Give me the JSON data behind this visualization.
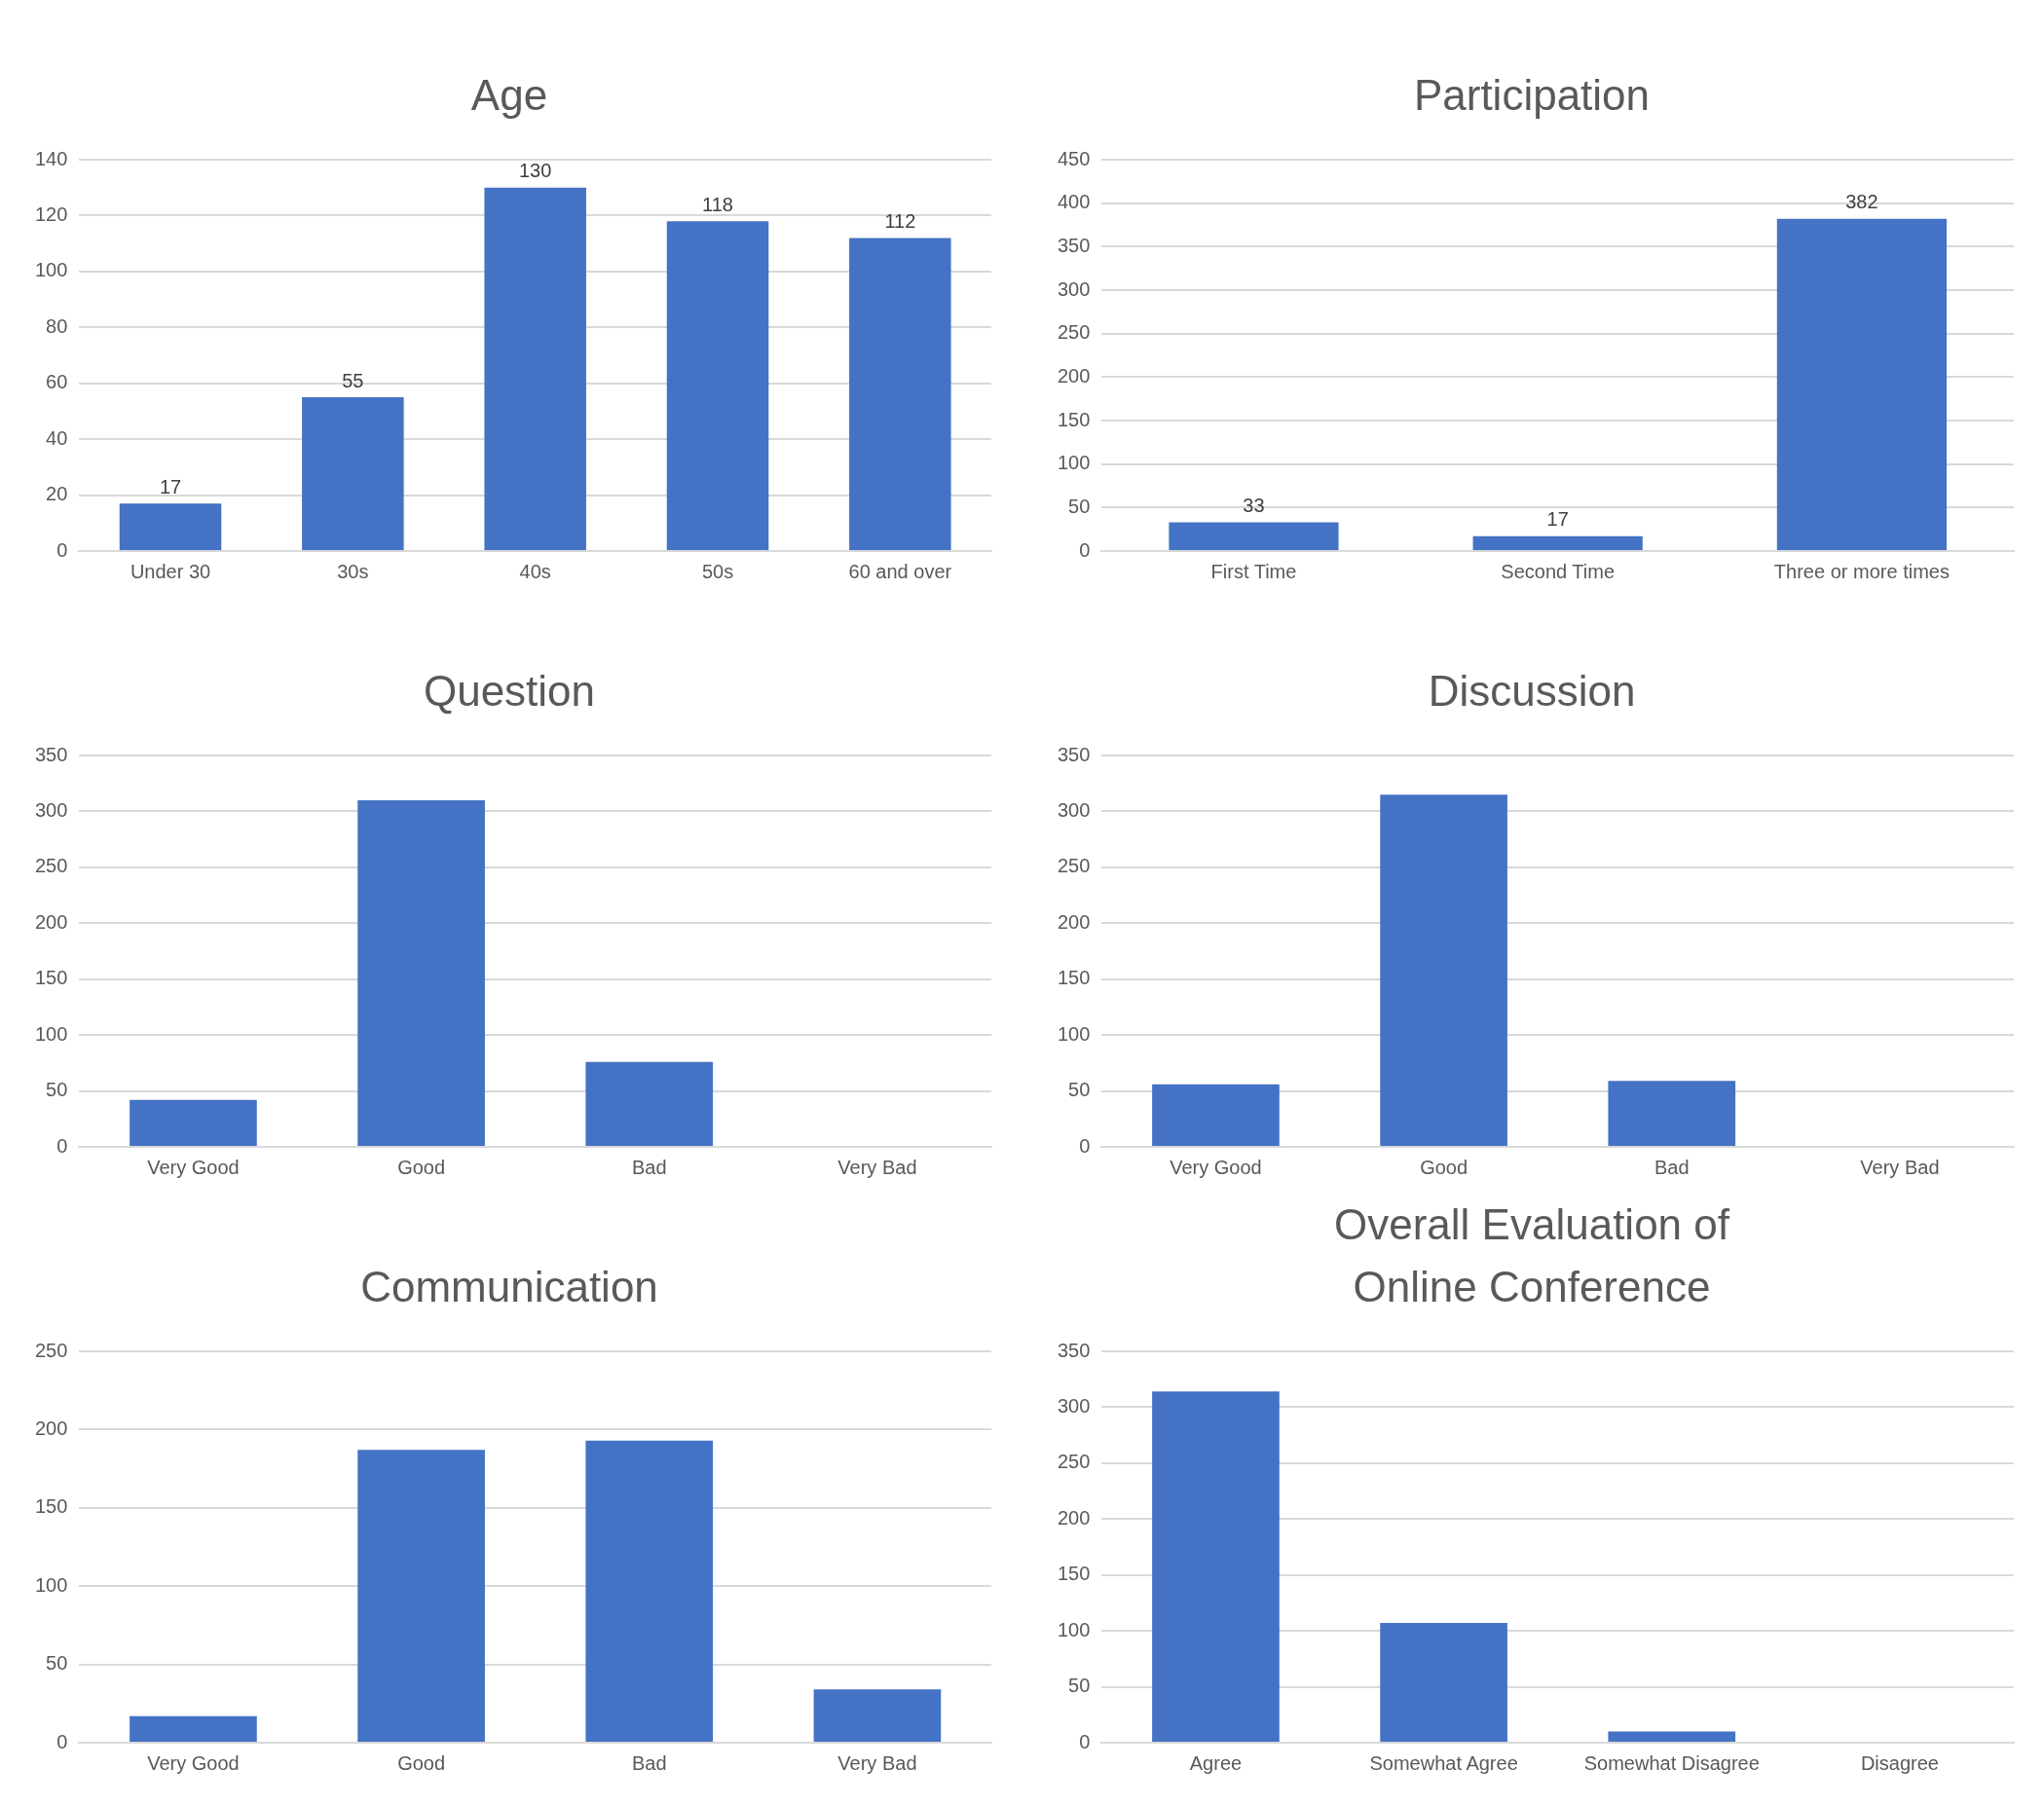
{
  "chart_data": [
    {
      "type": "bar",
      "title": "Age",
      "categories": [
        "Under 30",
        "30s",
        "40s",
        "50s",
        "60 and over"
      ],
      "values": [
        17,
        55,
        130,
        118,
        112
      ],
      "color": "#4472c4",
      "ylim": [
        0,
        140
      ],
      "yticks": [
        0,
        20,
        40,
        60,
        80,
        100,
        120,
        140
      ],
      "grid": "y",
      "data_labels": true
    },
    {
      "type": "bar",
      "title": "Participation",
      "categories": [
        "First Time",
        "Second Time",
        "Three or more times"
      ],
      "values": [
        33,
        17,
        382
      ],
      "color": "#4472c4",
      "ylim": [
        0,
        450
      ],
      "yticks": [
        0,
        50,
        100,
        150,
        200,
        250,
        300,
        350,
        400,
        450
      ],
      "grid": "y",
      "data_labels": true
    },
    {
      "type": "bar",
      "title": "Question",
      "categories": [
        "Very Good",
        "Good",
        "Bad",
        "Very Bad"
      ],
      "values": [
        42,
        310,
        76,
        0
      ],
      "color": "#4472c4",
      "ylim": [
        0,
        350
      ],
      "yticks": [
        0,
        50,
        100,
        150,
        200,
        250,
        300,
        350
      ],
      "grid": "y"
    },
    {
      "type": "bar",
      "title": "Discussion",
      "categories": [
        "Very Good",
        "Good",
        "Bad",
        "Very Bad"
      ],
      "values": [
        56,
        315,
        59,
        0
      ],
      "color": "#4472c4",
      "ylim": [
        0,
        350
      ],
      "yticks": [
        0,
        50,
        100,
        150,
        200,
        250,
        300,
        350
      ],
      "grid": "y"
    },
    {
      "type": "bar",
      "title": "Communication",
      "categories": [
        "Very Good",
        "Good",
        "Bad",
        "Very Bad"
      ],
      "values": [
        17,
        187,
        193,
        34
      ],
      "color": "#4472c4",
      "ylim": [
        0,
        250
      ],
      "yticks": [
        0,
        50,
        100,
        150,
        200,
        250
      ],
      "grid": "y"
    },
    {
      "type": "bar",
      "title": "Overall Evaluation of Online Conference",
      "categories": [
        "Agree",
        "Somewhat Agree",
        "Somewhat Disagree",
        "Disagree"
      ],
      "values": [
        314,
        107,
        10,
        0
      ],
      "color": "#4472c4",
      "ylim": [
        0,
        350
      ],
      "yticks": [
        0,
        50,
        100,
        150,
        200,
        250,
        300,
        350
      ],
      "grid": "y"
    }
  ]
}
